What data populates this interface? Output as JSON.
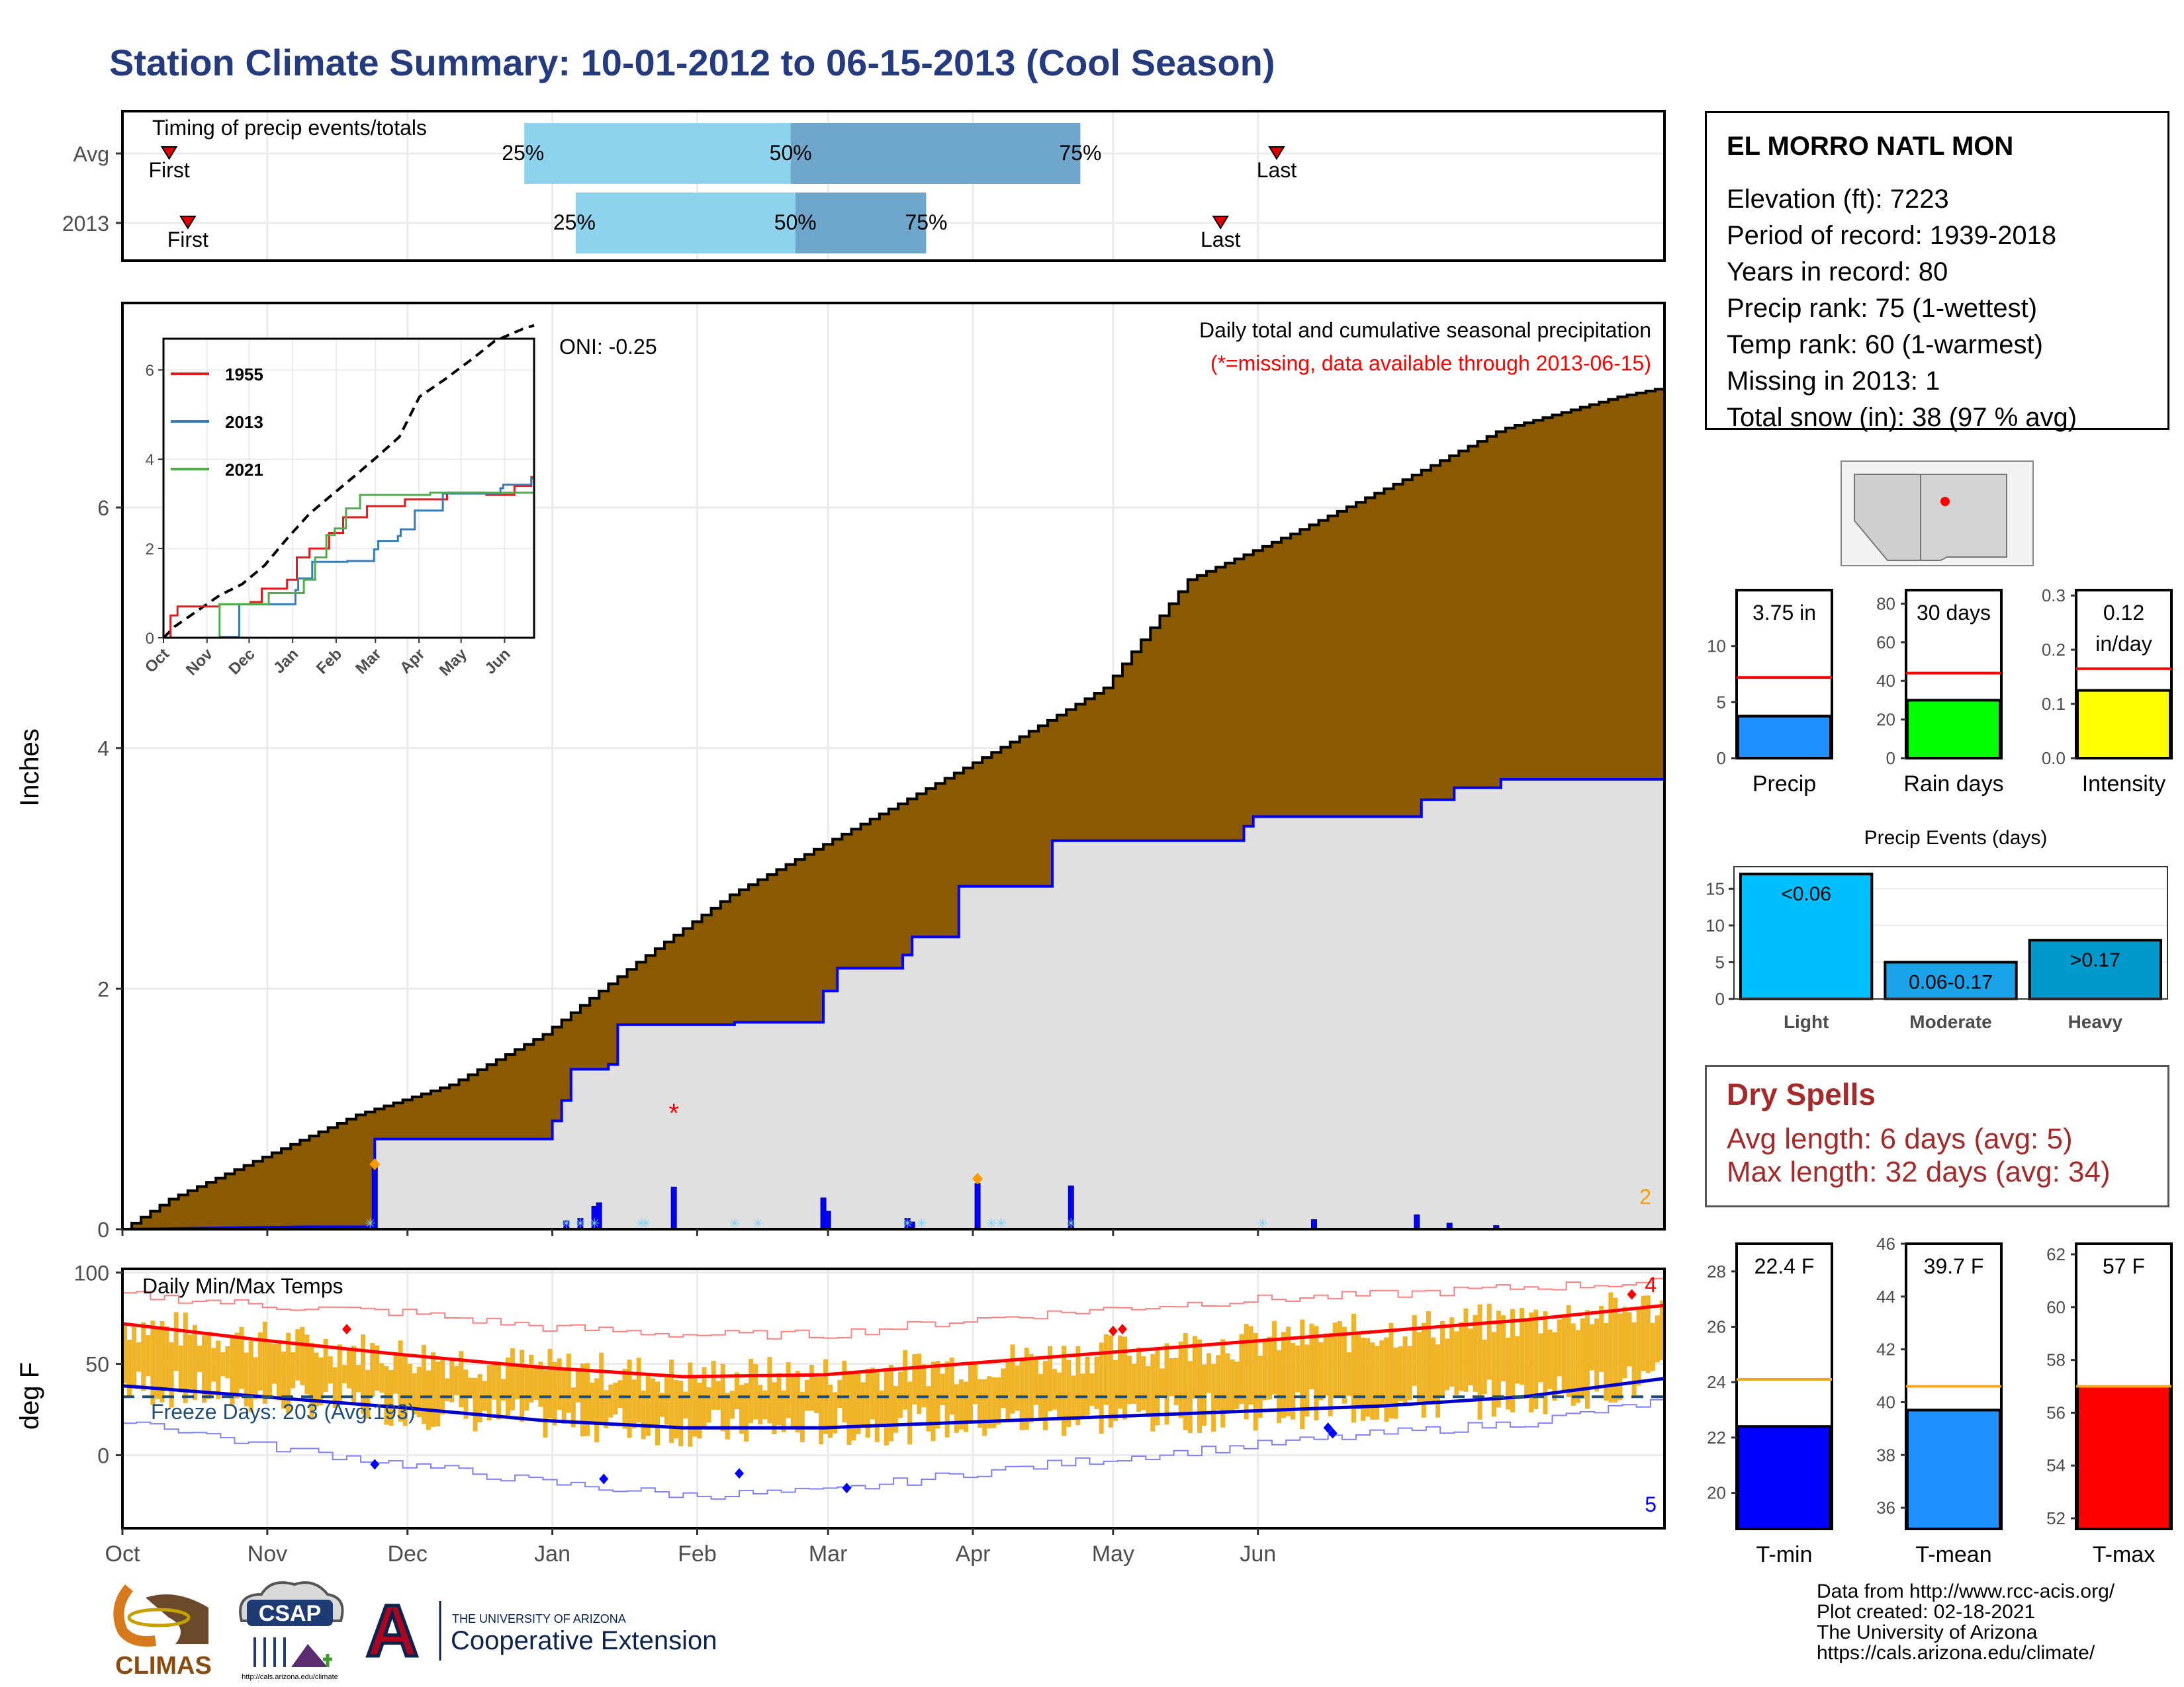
{
  "title": "Station Climate Summary: 10-01-2012 to 06-15-2013 (Cool Season)",
  "colors": {
    "title": "#253b80",
    "cumulative_fill": "#8b5a00",
    "current_fill": "#e0e0e0",
    "current_line": "#0000ff",
    "event_light": "#8dd3ee",
    "event_dark": "#6ea6cc",
    "tmax_line": "#ff0000",
    "tmin_line": "#0000cc",
    "temp_bars": "#f0b429",
    "dry_spells": "#a52a2a"
  },
  "station": {
    "name": "EL MORRO NATL MON",
    "lines": [
      "Elevation (ft): 7223",
      "Period of record: 1939-2018",
      "Years in record: 80",
      "Precip rank: 75 (1-wettest)",
      "Temp rank: 60 (1-warmest)",
      "Missing in 2013: 1",
      "Total snow (in): 38 (97 % avg)"
    ]
  },
  "timing": {
    "label": "Timing of precip events/totals",
    "rows": [
      {
        "name": "Avg",
        "first_day": 10,
        "last_day": 247,
        "p25_day": 86,
        "p50_day": 143,
        "p75_day": 205
      },
      {
        "name": "2013",
        "first_day": 14,
        "last_day": 235,
        "p25_day": 97,
        "p50_day": 144,
        "p75_day": 172
      }
    ],
    "first_label": "First",
    "last_label": "Last",
    "pct_labels": [
      "25%",
      "50%",
      "75%"
    ]
  },
  "precip": {
    "title": "Daily total and cumulative seasonal precipitation",
    "missing_note": "(*=missing, data available through 2013-06-15)",
    "oni": "ONI: -0.25",
    "ylabel": "Inches",
    "yticks": [
      0,
      2,
      4,
      6
    ],
    "ylim": [
      0,
      7.7
    ],
    "corner_count": "2",
    "avg_cumulative": [
      [
        0,
        0
      ],
      [
        10,
        0.25
      ],
      [
        30,
        0.6
      ],
      [
        50,
        0.95
      ],
      [
        70,
        1.2
      ],
      [
        90,
        1.62
      ],
      [
        110,
        2.22
      ],
      [
        130,
        2.78
      ],
      [
        150,
        3.2
      ],
      [
        170,
        3.62
      ],
      [
        190,
        4.05
      ],
      [
        210,
        4.5
      ],
      [
        228,
        5.4
      ],
      [
        250,
        5.78
      ],
      [
        275,
        6.25
      ],
      [
        295,
        6.65
      ],
      [
        320,
        6.92
      ],
      [
        330,
        7.0
      ]
    ],
    "current_cumulative": [
      [
        0,
        0
      ],
      [
        40,
        0.02
      ],
      [
        54,
        0.02
      ],
      [
        54,
        0.75
      ],
      [
        92,
        0.75
      ],
      [
        92,
        0.9
      ],
      [
        94,
        0.9
      ],
      [
        94,
        1.07
      ],
      [
        96,
        1.07
      ],
      [
        96,
        1.33
      ],
      [
        104,
        1.33
      ],
      [
        104,
        1.37
      ],
      [
        106,
        1.37
      ],
      [
        106,
        1.7
      ],
      [
        131,
        1.7
      ],
      [
        131,
        1.72
      ],
      [
        150,
        1.72
      ],
      [
        150,
        1.98
      ],
      [
        153,
        1.98
      ],
      [
        153,
        2.17
      ],
      [
        167,
        2.17
      ],
      [
        167,
        2.28
      ],
      [
        169,
        2.28
      ],
      [
        169,
        2.43
      ],
      [
        179,
        2.43
      ],
      [
        179,
        2.85
      ],
      [
        199,
        2.85
      ],
      [
        199,
        3.23
      ],
      [
        240,
        3.23
      ],
      [
        240,
        3.35
      ],
      [
        242,
        3.35
      ],
      [
        242,
        3.43
      ],
      [
        278,
        3.43
      ],
      [
        278,
        3.57
      ],
      [
        285,
        3.57
      ],
      [
        285,
        3.67
      ],
      [
        295,
        3.67
      ],
      [
        295,
        3.74
      ],
      [
        330,
        3.74
      ]
    ],
    "daily_bars": [
      [
        54,
        0.53
      ],
      [
        95,
        0.07
      ],
      [
        98,
        0.09
      ],
      [
        101,
        0.19
      ],
      [
        102,
        0.22
      ],
      [
        118,
        0.35
      ],
      [
        150,
        0.26
      ],
      [
        151,
        0.15
      ],
      [
        168,
        0.09
      ],
      [
        169,
        0.06
      ],
      [
        183,
        0.38
      ],
      [
        203,
        0.36
      ],
      [
        255,
        0.08
      ],
      [
        277,
        0.12
      ],
      [
        284,
        0.05
      ],
      [
        294,
        0.03
      ]
    ],
    "snow_marks": [
      53,
      95,
      98,
      101,
      111,
      112,
      131,
      136,
      168,
      171,
      186,
      188,
      203,
      244
    ],
    "orange_marks": [
      [
        54,
        0.54
      ],
      [
        183,
        0.42
      ]
    ],
    "missing_marks": [
      [
        118,
        0.98
      ]
    ]
  },
  "inset": {
    "legend": [
      {
        "name": "1955",
        "color": "#e41a1c"
      },
      {
        "name": "2013",
        "color": "#377eb8"
      },
      {
        "name": "2021",
        "color": "#4daf4a"
      }
    ],
    "yticks": [
      0,
      2,
      4,
      6
    ],
    "ylim": [
      0,
      6.7
    ],
    "months": [
      "Oct",
      "Nov",
      "Dec",
      "Jan",
      "Feb",
      "Mar",
      "Apr",
      "May",
      "Jun"
    ],
    "avg_cumulative": [
      [
        0,
        0
      ],
      [
        10,
        0.25
      ],
      [
        30,
        0.6
      ],
      [
        50,
        0.95
      ],
      [
        70,
        1.2
      ],
      [
        90,
        1.62
      ],
      [
        110,
        2.22
      ],
      [
        130,
        2.78
      ],
      [
        150,
        3.2
      ],
      [
        170,
        3.62
      ],
      [
        190,
        4.05
      ],
      [
        210,
        4.5
      ],
      [
        228,
        5.4
      ],
      [
        250,
        5.78
      ],
      [
        275,
        6.25
      ],
      [
        295,
        6.65
      ],
      [
        320,
        6.92
      ],
      [
        330,
        7.0
      ]
    ],
    "series": [
      {
        "name": "1955",
        "points": [
          [
            0,
            0
          ],
          [
            5,
            0.5
          ],
          [
            10,
            0.7
          ],
          [
            40,
            0.75
          ],
          [
            62,
            0.8
          ],
          [
            70,
            1.1
          ],
          [
            88,
            1.3
          ],
          [
            95,
            1.8
          ],
          [
            104,
            2.0
          ],
          [
            118,
            2.35
          ],
          [
            128,
            2.7
          ],
          [
            145,
            2.95
          ],
          [
            172,
            3.1
          ],
          [
            202,
            3.25
          ],
          [
            230,
            3.2
          ],
          [
            250,
            3.4
          ],
          [
            262,
            3.6
          ],
          [
            264,
            4.5
          ]
        ]
      },
      {
        "name": "2013",
        "points": [
          [
            0,
            0
          ],
          [
            40,
            0.02
          ],
          [
            54,
            0.75
          ],
          [
            92,
            0.75
          ],
          [
            94,
            1.07
          ],
          [
            96,
            1.33
          ],
          [
            106,
            1.7
          ],
          [
            131,
            1.72
          ],
          [
            150,
            1.98
          ],
          [
            153,
            2.17
          ],
          [
            167,
            2.28
          ],
          [
            169,
            2.43
          ],
          [
            179,
            2.85
          ],
          [
            199,
            3.23
          ],
          [
            240,
            3.35
          ],
          [
            242,
            3.43
          ],
          [
            262,
            3.57
          ],
          [
            264,
            3.74
          ]
        ]
      },
      {
        "name": "2021",
        "points": [
          [
            0,
            0
          ],
          [
            38,
            0.0
          ],
          [
            40,
            0.75
          ],
          [
            70,
            0.75
          ],
          [
            75,
            1.0
          ],
          [
            100,
            1.3
          ],
          [
            108,
            1.8
          ],
          [
            116,
            2.3
          ],
          [
            122,
            2.45
          ],
          [
            130,
            2.9
          ],
          [
            140,
            3.2
          ],
          [
            160,
            3.2
          ],
          [
            190,
            3.25
          ],
          [
            210,
            3.25
          ],
          [
            264,
            3.3
          ]
        ]
      }
    ]
  },
  "temps": {
    "title": "Daily Min/Max Temps",
    "freeze": "Freeze Days: 203 (Avg:193)",
    "ylabel": "deg F",
    "yticks": [
      0,
      50,
      100
    ],
    "ylim": [
      -40,
      102
    ],
    "freeze_line": 32,
    "count_hot": "4",
    "count_cold": "5",
    "avg_max": [
      [
        0,
        72
      ],
      [
        30,
        63
      ],
      [
        60,
        55
      ],
      [
        90,
        48
      ],
      [
        120,
        43
      ],
      [
        150,
        44
      ],
      [
        180,
        50
      ],
      [
        210,
        56
      ],
      [
        240,
        62
      ],
      [
        270,
        68
      ],
      [
        300,
        74
      ],
      [
        330,
        82
      ]
    ],
    "avg_min": [
      [
        0,
        38
      ],
      [
        30,
        32
      ],
      [
        60,
        26
      ],
      [
        90,
        19
      ],
      [
        120,
        15
      ],
      [
        150,
        15
      ],
      [
        180,
        18
      ],
      [
        210,
        21
      ],
      [
        240,
        24
      ],
      [
        270,
        27
      ],
      [
        300,
        32
      ],
      [
        330,
        42
      ]
    ],
    "record_max": [
      [
        0,
        88
      ],
      [
        30,
        82
      ],
      [
        60,
        78
      ],
      [
        90,
        70
      ],
      [
        120,
        66
      ],
      [
        150,
        66
      ],
      [
        180,
        74
      ],
      [
        210,
        80
      ],
      [
        240,
        85
      ],
      [
        270,
        88
      ],
      [
        300,
        92
      ],
      [
        330,
        95
      ]
    ],
    "record_min": [
      [
        0,
        20
      ],
      [
        30,
        5
      ],
      [
        60,
        -5
      ],
      [
        90,
        -15
      ],
      [
        120,
        -22
      ],
      [
        150,
        -20
      ],
      [
        180,
        -10
      ],
      [
        210,
        -2
      ],
      [
        240,
        5
      ],
      [
        270,
        12
      ],
      [
        300,
        18
      ],
      [
        330,
        30
      ]
    ],
    "hot_marks": [
      [
        48,
        69
      ],
      [
        212,
        68
      ],
      [
        214,
        69
      ],
      [
        323,
        88
      ]
    ],
    "cold_marks": [
      [
        54,
        -5
      ],
      [
        103,
        -13
      ],
      [
        132,
        -10
      ],
      [
        155,
        -18
      ],
      [
        258,
        15
      ],
      [
        259,
        12
      ]
    ],
    "months": [
      "Oct",
      "Nov",
      "Dec",
      "Jan",
      "Feb",
      "Mar",
      "Apr",
      "May",
      "Jun"
    ],
    "month_starts": [
      0,
      31,
      61,
      92,
      123,
      151,
      182,
      212,
      243
    ]
  },
  "precip_bars": [
    {
      "label": "Precip",
      "value_text": "3.75 in",
      "value": 3.75,
      "avg": 7.2,
      "ylim": [
        0,
        15
      ],
      "yticks": [
        0,
        5,
        10
      ],
      "color": "#1e90ff"
    },
    {
      "label": "Rain days",
      "value_text": "30 days",
      "value": 30,
      "avg": 44,
      "ylim": [
        0,
        87
      ],
      "yticks": [
        0,
        20,
        40,
        60,
        80
      ],
      "color": "#00ff00"
    },
    {
      "label": "Intensity",
      "value_text": "0.12",
      "value_text2": "in/day",
      "value": 0.125,
      "avg": 0.165,
      "ylim": [
        0,
        0.31
      ],
      "yticks": [
        0.0,
        0.1,
        0.2,
        0.3
      ],
      "color": "#ffff00"
    }
  ],
  "events": {
    "title": "Precip Events (days)",
    "categories": [
      "Light",
      "Moderate",
      "Heavy"
    ],
    "values": [
      17,
      5,
      8
    ],
    "labels": [
      "<0.06",
      "0.06-0.17",
      ">0.17"
    ],
    "colors": [
      "#00bfff",
      "#1aa3e8",
      "#0099cc"
    ],
    "yticks": [
      0,
      5,
      10,
      15
    ],
    "ylim": [
      0,
      18
    ]
  },
  "dry_spells": {
    "title": "Dry Spells",
    "avg_length": "Avg length: 6 days (avg: 5)",
    "max_length": "Max length: 32 days (avg: 34)"
  },
  "temp_bars": [
    {
      "label": "T-min",
      "value_text": "22.4 F",
      "value": 22.4,
      "avg": 24.1,
      "ylim": [
        18.7,
        29
      ],
      "yticks": [
        20,
        22,
        24,
        26,
        28
      ],
      "color": "#0000ff"
    },
    {
      "label": "T-mean",
      "value_text": "39.7 F",
      "value": 39.7,
      "avg": 40.6,
      "ylim": [
        35.2,
        46
      ],
      "yticks": [
        36,
        38,
        40,
        42,
        44,
        46
      ],
      "color": "#1e90ff"
    },
    {
      "label": "T-max",
      "value_text": "57 F",
      "value": 57.0,
      "avg": 57.0,
      "ylim": [
        51.6,
        62.4
      ],
      "yticks": [
        52,
        54,
        56,
        58,
        60,
        62
      ],
      "color": "#ff0000"
    }
  ],
  "credits": [
    "Data from http://www.rcc-acis.org/",
    "Plot created: 02-18-2021",
    "The University of Arizona",
    "https://cals.arizona.edu/climate/"
  ],
  "logos": {
    "climas": "CLIMAS",
    "csap": "CSAP",
    "csap_url": "http://cals.arizona.edu/climate",
    "ua_letter": "A",
    "ua_small": "THE UNIVERSITY OF ARIZONA",
    "ua_large": "Cooperative Extension"
  }
}
